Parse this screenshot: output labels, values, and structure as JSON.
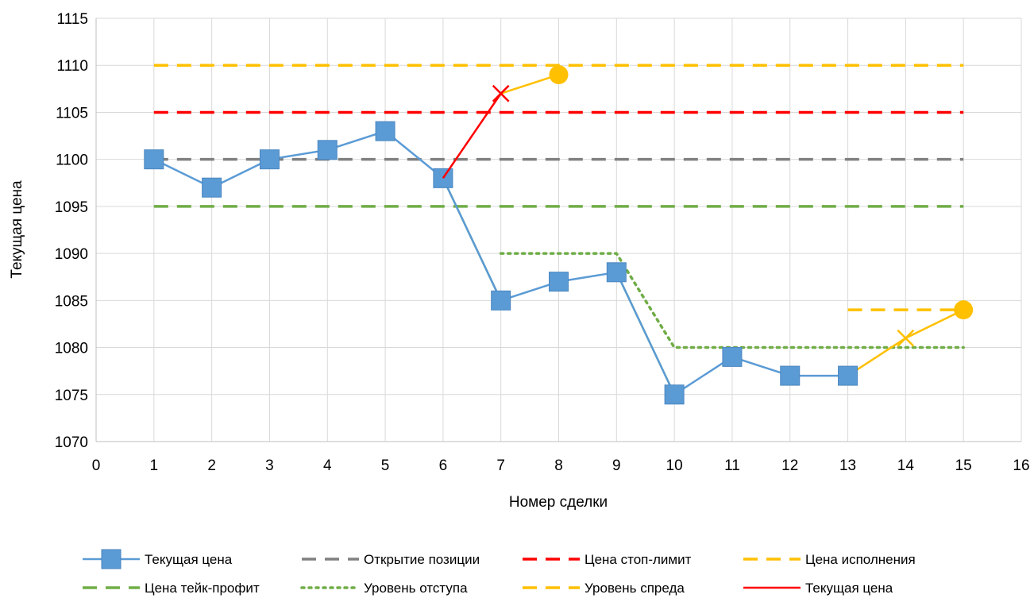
{
  "chart_data": {
    "type": "line",
    "xlabel": "Номер сделки",
    "ylabel": "Текущая цена",
    "xlim": [
      0,
      16
    ],
    "ylim": [
      1070,
      1115
    ],
    "xticks": [
      0,
      1,
      2,
      3,
      4,
      5,
      6,
      7,
      8,
      9,
      10,
      11,
      12,
      13,
      14,
      15,
      16
    ],
    "yticks": [
      1070,
      1075,
      1080,
      1085,
      1090,
      1095,
      1100,
      1105,
      1110,
      1115
    ],
    "grid": true,
    "legend_position": "bottom",
    "series": [
      {
        "name": "Цена исполнения",
        "color": "#FFC000",
        "style": "dashed",
        "x": [
          1,
          15
        ],
        "y": [
          1110,
          1110
        ]
      },
      {
        "name": "Цена стоп-лимит",
        "color": "#FF0000",
        "style": "dashed",
        "x": [
          1,
          15
        ],
        "y": [
          1105,
          1105
        ]
      },
      {
        "name": "Открытие позиции",
        "color": "#808080",
        "style": "dashed",
        "x": [
          1,
          15
        ],
        "y": [
          1100,
          1100
        ]
      },
      {
        "name": "Цена тейк-профит",
        "color": "#70AD47",
        "style": "dashed",
        "x": [
          1,
          15
        ],
        "y": [
          1095,
          1095
        ]
      },
      {
        "name": "Уровень отступа",
        "color": "#70AD47",
        "style": "dotted",
        "x": [
          7,
          9,
          10,
          15
        ],
        "y": [
          1090,
          1090,
          1080,
          1080
        ]
      },
      {
        "name": "Уровень спреда",
        "color": "#FFC000",
        "style": "dashed",
        "x": [
          13,
          15
        ],
        "y": [
          1084,
          1084
        ]
      },
      {
        "name": "",
        "color": "#70AD47",
        "style": "solid",
        "x": [
          6,
          7
        ],
        "y": [
          1098,
          1085
        ],
        "end_marker": "triangle"
      },
      {
        "name": "",
        "color": "#70AD47",
        "style": "solid",
        "x": [
          9,
          10
        ],
        "y": [
          1088,
          1075
        ],
        "end_marker": "triangle"
      },
      {
        "name": "",
        "color": "#FFC000",
        "style": "solid",
        "x": [
          7,
          8
        ],
        "y": [
          1107,
          1109
        ],
        "end_marker": "circle"
      },
      {
        "name": "",
        "color": "#FFC000",
        "style": "solid",
        "x": [
          13,
          14,
          15
        ],
        "y": [
          1077,
          1081,
          1084
        ],
        "end_marker": "circle",
        "x_marker_at": 14
      },
      {
        "name": "Текущая цена",
        "color": "#5B9BD5",
        "style": "solid",
        "marker": "square",
        "x": [
          1,
          2,
          3,
          4,
          5,
          6,
          7,
          8,
          9,
          10,
          11,
          12,
          13
        ],
        "y": [
          1100,
          1097,
          1100,
          1101,
          1103,
          1098,
          1085,
          1087,
          1088,
          1075,
          1079,
          1077,
          1077
        ]
      },
      {
        "name": "Текущая цена",
        "color": "#FF0000",
        "style": "solid",
        "x": [
          6,
          7
        ],
        "y": [
          1098,
          1107
        ],
        "x_marker_at": 7
      }
    ]
  },
  "legend": [
    {
      "label": "Текущая цена",
      "color": "#5B9BD5",
      "style": "solid",
      "marker": "square"
    },
    {
      "label": "Открытие позиции",
      "color": "#808080",
      "style": "dashed"
    },
    {
      "label": "Цена стоп-лимит",
      "color": "#FF0000",
      "style": "dashed"
    },
    {
      "label": "Цена исполнения",
      "color": "#FFC000",
      "style": "dashed"
    },
    {
      "label": "Цена тейк-профит",
      "color": "#70AD47",
      "style": "dashed"
    },
    {
      "label": "Уровень отступа",
      "color": "#70AD47",
      "style": "dotted"
    },
    {
      "label": "Уровень спреда",
      "color": "#FFC000",
      "style": "dashed"
    },
    {
      "label": "Текущая цена",
      "color": "#FF0000",
      "style": "solid"
    }
  ]
}
